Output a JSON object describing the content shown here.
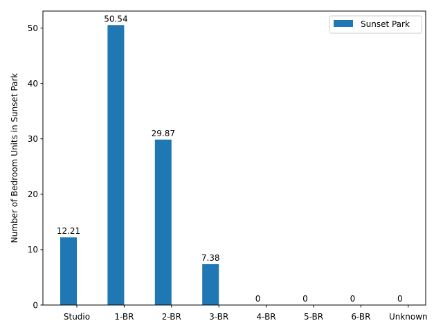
{
  "chart_data": {
    "type": "bar",
    "categories": [
      "Studio",
      "1-BR",
      "2-BR",
      "3-BR",
      "4-BR",
      "5-BR",
      "6-BR",
      "Unknown"
    ],
    "series": [
      {
        "name": "Sunset Park",
        "values": [
          12.21,
          50.54,
          29.87,
          7.38,
          0,
          0,
          0,
          0
        ],
        "value_labels": [
          "12.21",
          "50.54",
          "29.87",
          "7.38",
          "0",
          "0",
          "0",
          "0"
        ],
        "color": "#1f77b4"
      }
    ],
    "title": "",
    "xlabel": "",
    "ylabel": "Number of Bedroom Units in Sunset Park",
    "ylim": [
      0,
      53.07
    ],
    "yticks": [
      0,
      10,
      20,
      30,
      40,
      50
    ],
    "grid": false,
    "legend_position": "top-right"
  }
}
